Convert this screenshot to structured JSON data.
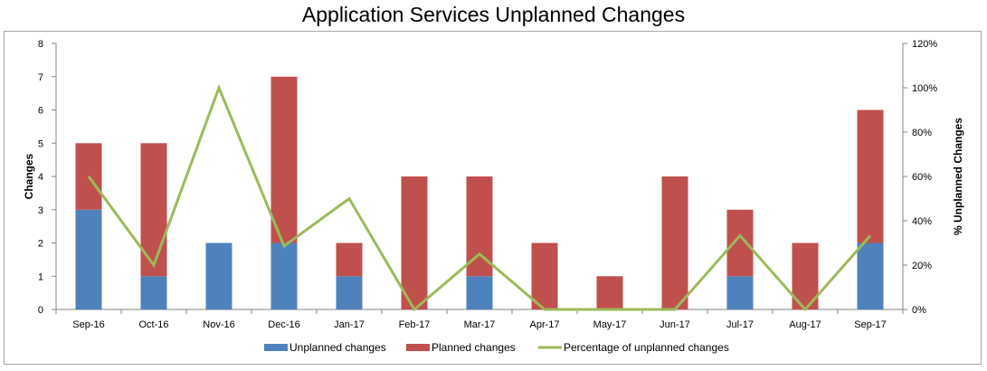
{
  "chart_data": {
    "type": "bar",
    "stacked": true,
    "title": "Application Services Unplanned Changes",
    "categories": [
      "Sep-16",
      "Oct-16",
      "Nov-16",
      "Dec-16",
      "Jan-17",
      "Feb-17",
      "Mar-17",
      "Apr-17",
      "May-17",
      "Jun-17",
      "Jul-17",
      "Aug-17",
      "Sep-17"
    ],
    "series": [
      {
        "name": "Unplanned changes",
        "type": "bar",
        "axis": "left",
        "color": "#4f81bd",
        "values": [
          3,
          1,
          2,
          2,
          1,
          0,
          1,
          0,
          0,
          0,
          1,
          0,
          2
        ]
      },
      {
        "name": "Planned changes",
        "type": "bar",
        "axis": "left",
        "color": "#c0504d",
        "values": [
          2,
          4,
          0,
          5,
          1,
          4,
          3,
          2,
          1,
          4,
          2,
          2,
          4
        ]
      },
      {
        "name": "Percentage of unplanned changes",
        "type": "line",
        "axis": "right",
        "color": "#9bbb59",
        "values": [
          60,
          20,
          100,
          28.6,
          50,
          0,
          25,
          0,
          0,
          0,
          33.3,
          0,
          33.3
        ]
      }
    ],
    "ylabel": "Changes",
    "ylim": [
      0,
      8
    ],
    "yticks": [
      "0",
      "1",
      "2",
      "3",
      "4",
      "5",
      "6",
      "7",
      "8"
    ],
    "y2label": "% Unplanned Changes",
    "y2lim": [
      0,
      120
    ],
    "y2ticks": [
      "0%",
      "20%",
      "40%",
      "60%",
      "80%",
      "100%",
      "120%"
    ],
    "grid": false,
    "legend_position": "bottom"
  }
}
